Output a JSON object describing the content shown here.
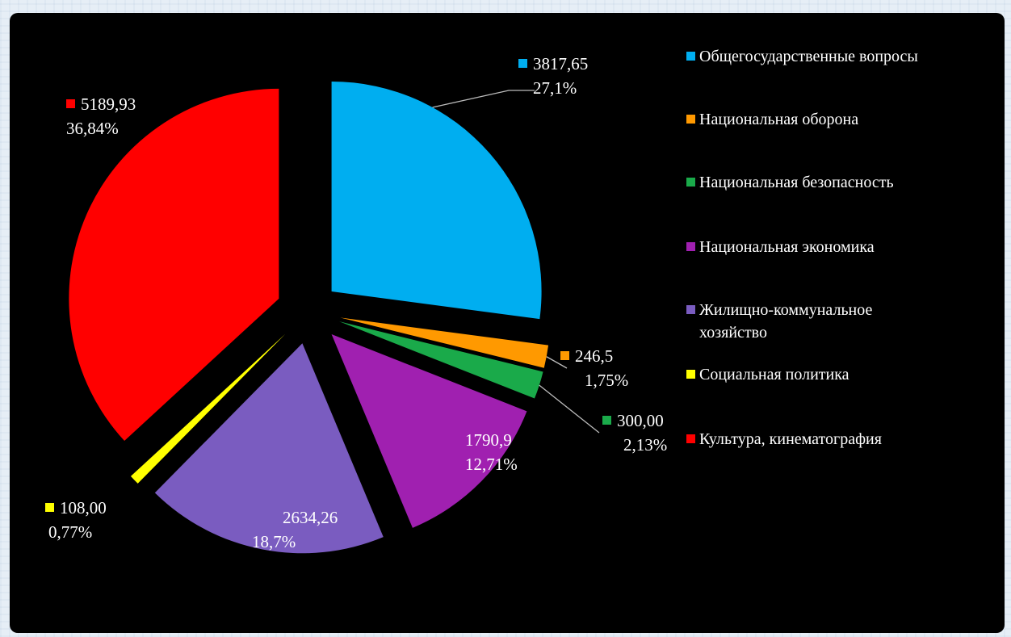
{
  "chart_data": {
    "type": "pie",
    "title": "",
    "legend_position": "right",
    "slices": [
      {
        "name": "Общегосударственные вопросы",
        "value_label": "3817,65",
        "percent_label": "27,1%",
        "value": 3817.65,
        "percent": 27.1,
        "color": "#00aef0"
      },
      {
        "name": "Национальная оборона",
        "value_label": "246,5",
        "percent_label": "1,75%",
        "value": 246.5,
        "percent": 1.75,
        "color": "#ff9900"
      },
      {
        "name": "Национальная безопасность",
        "value_label": "300,00",
        "percent_label": "2,13%",
        "value": 300.0,
        "percent": 2.13,
        "color": "#1aaa4a"
      },
      {
        "name": "Национальная экономика",
        "value_label": "1790,9",
        "percent_label": "12,71%",
        "value": 1790.9,
        "percent": 12.71,
        "color": "#a020b0"
      },
      {
        "name": "Жилищно-коммунальное хозяйство",
        "value_label": "2634,26",
        "percent_label": "18,7%",
        "value": 2634.26,
        "percent": 18.7,
        "color": "#7a5cc0"
      },
      {
        "name": "Социальная политика",
        "value_label": "108,00",
        "percent_label": "0,77%",
        "value": 108.0,
        "percent": 0.77,
        "color": "#ffff00"
      },
      {
        "name": "Культура, кинематография",
        "value_label": "5189,93",
        "percent_label": "36,84%",
        "value": 5189.93,
        "percent": 36.84,
        "color": "#ff0000"
      }
    ]
  }
}
